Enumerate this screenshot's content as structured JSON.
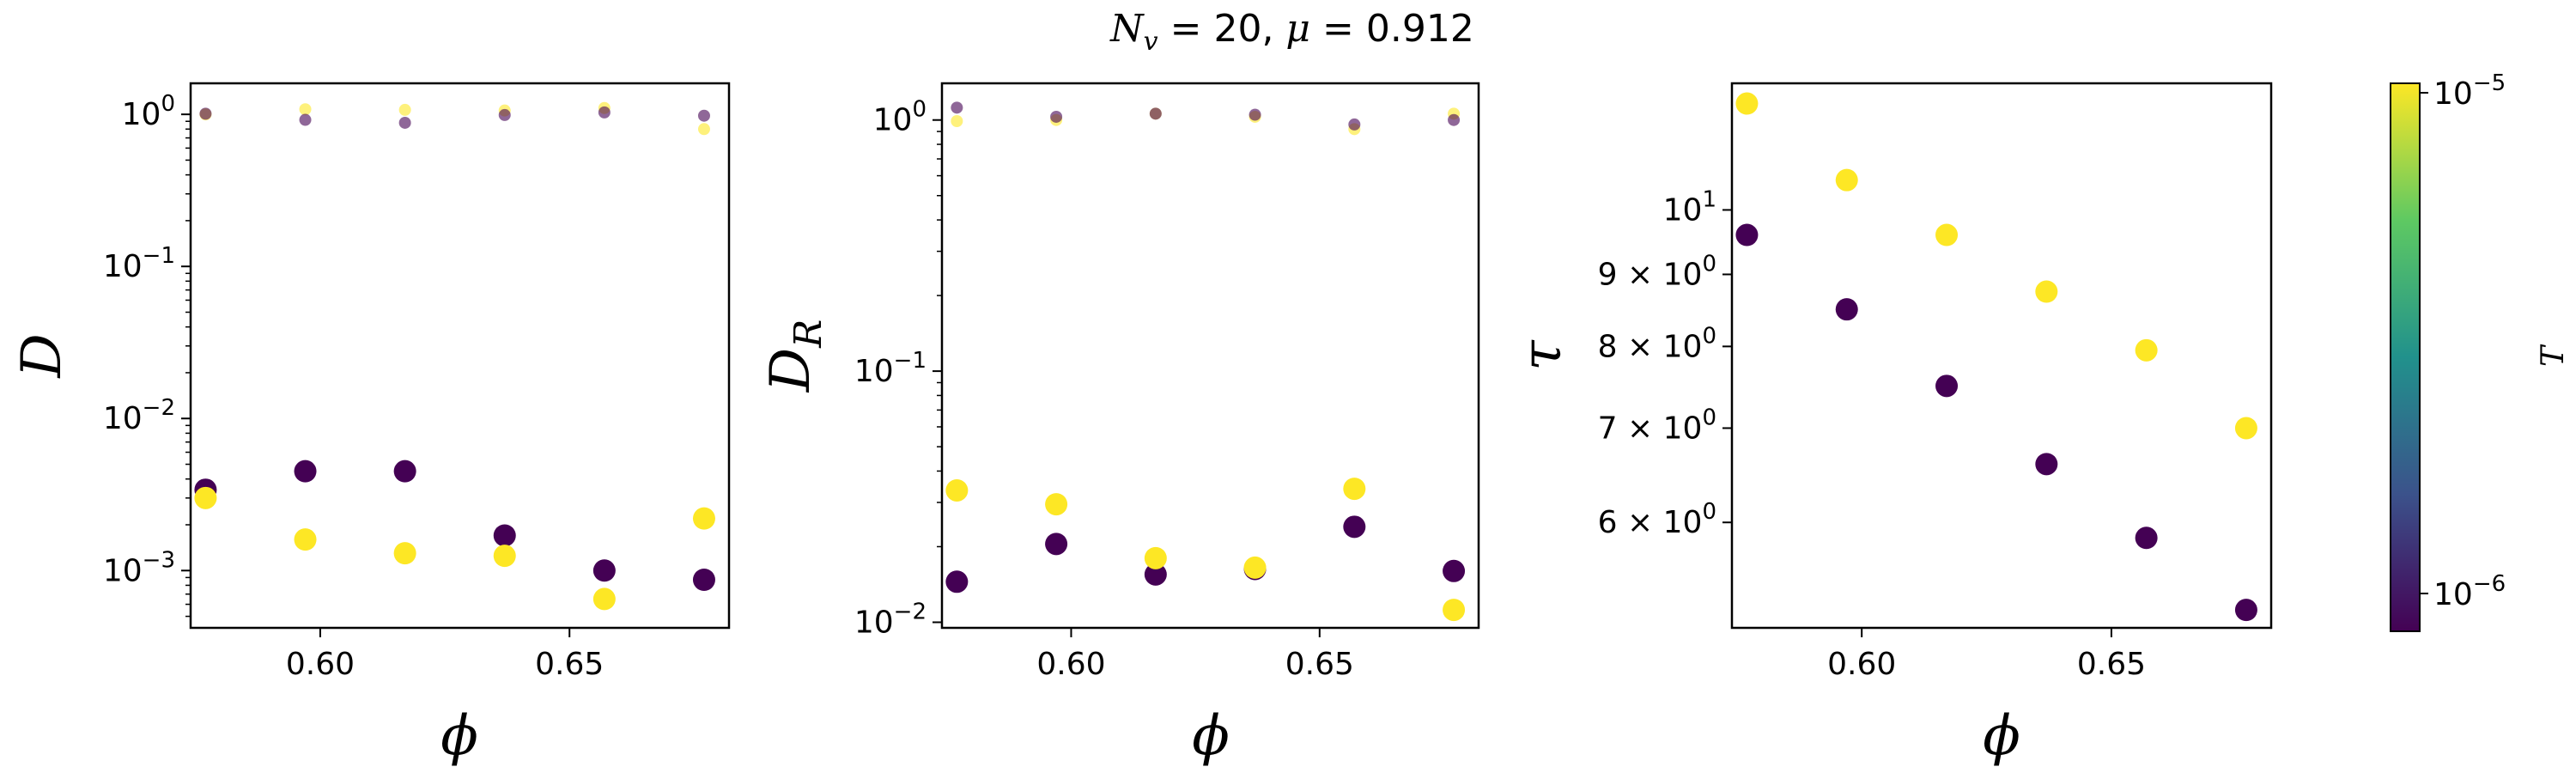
{
  "figure": {
    "title_main": "N",
    "title_sub": "v",
    "title_rest": " = 20, ",
    "title_mu": "μ",
    "title_value": " = 0.912"
  },
  "colorbar": {
    "label": "T",
    "tick_top_base": "10",
    "tick_top_exp": "−5",
    "tick_bottom_base": "10",
    "tick_bottom_exp": "−6",
    "colors": [
      "#440154",
      "#3b528b",
      "#21918c",
      "#5ec962",
      "#fde725"
    ]
  },
  "chart_data": [
    {
      "type": "scatter",
      "xlabel": "ϕ",
      "ylabel": "D",
      "yscale": "log",
      "xlim": [
        0.574,
        0.682
      ],
      "ylim": [
        0.00042,
        1.6
      ],
      "xticks": [
        {
          "value": 0.6,
          "label": "0.60"
        },
        {
          "value": 0.65,
          "label": "0.65"
        }
      ],
      "yticks": [
        {
          "value": 1,
          "base": "10",
          "exp": "0"
        },
        {
          "value": 0.1,
          "base": "10",
          "exp": "−1"
        },
        {
          "value": 0.01,
          "base": "10",
          "exp": "−2"
        },
        {
          "value": 0.001,
          "base": "10",
          "exp": "−3"
        }
      ],
      "series": [
        {
          "color": "#fde725",
          "size": "small",
          "alpha": 0.6,
          "x": [
            0.577,
            0.597,
            0.617,
            0.637,
            0.657,
            0.677
          ],
          "y": [
            1.0,
            1.08,
            1.07,
            1.06,
            1.1,
            0.8
          ]
        },
        {
          "color": "#440154",
          "size": "small",
          "alpha": 0.6,
          "x": [
            0.577,
            0.597,
            0.617,
            0.637,
            0.657,
            0.677
          ],
          "y": [
            1.01,
            0.92,
            0.88,
            0.99,
            1.03,
            0.98
          ]
        },
        {
          "color": "#440154",
          "size": "large",
          "alpha": 1,
          "x": [
            0.577,
            0.597,
            0.617,
            0.637,
            0.657,
            0.677
          ],
          "y": [
            0.0034,
            0.0045,
            0.0045,
            0.0017,
            0.001,
            0.00087
          ]
        },
        {
          "color": "#fde725",
          "size": "large",
          "alpha": 1,
          "x": [
            0.577,
            0.597,
            0.617,
            0.637,
            0.657,
            0.677
          ],
          "y": [
            0.003,
            0.0016,
            0.0013,
            0.00125,
            0.00065,
            0.0022
          ]
        }
      ]
    },
    {
      "type": "scatter",
      "xlabel": "ϕ",
      "ylabel": "D",
      "ylabel_sub": "R",
      "yscale": "log",
      "xlim": [
        0.574,
        0.682
      ],
      "ylim": [
        0.0095,
        1.4
      ],
      "xticks": [
        {
          "value": 0.6,
          "label": "0.60"
        },
        {
          "value": 0.65,
          "label": "0.65"
        }
      ],
      "yticks": [
        {
          "value": 1,
          "base": "10",
          "exp": "0"
        },
        {
          "value": 0.1,
          "base": "10",
          "exp": "−1"
        },
        {
          "value": 0.01,
          "base": "10",
          "exp": "−2"
        }
      ],
      "series": [
        {
          "color": "#fde725",
          "size": "small",
          "alpha": 0.6,
          "x": [
            0.577,
            0.597,
            0.617,
            0.637,
            0.657,
            0.677
          ],
          "y": [
            0.99,
            1.0,
            1.06,
            1.03,
            0.92,
            1.06
          ]
        },
        {
          "color": "#440154",
          "size": "small",
          "alpha": 0.6,
          "x": [
            0.577,
            0.597,
            0.617,
            0.637,
            0.657,
            0.677
          ],
          "y": [
            1.12,
            1.03,
            1.06,
            1.05,
            0.96,
            1.0
          ]
        },
        {
          "color": "#440154",
          "size": "large",
          "alpha": 1,
          "x": [
            0.577,
            0.597,
            0.617,
            0.637,
            0.657,
            0.677
          ],
          "y": [
            0.0145,
            0.0205,
            0.0155,
            0.0163,
            0.024,
            0.016
          ]
        },
        {
          "color": "#fde725",
          "size": "large",
          "alpha": 1,
          "x": [
            0.577,
            0.597,
            0.617,
            0.637,
            0.657,
            0.677
          ],
          "y": [
            0.0335,
            0.0295,
            0.018,
            0.0165,
            0.034,
            0.0112
          ]
        }
      ]
    },
    {
      "type": "scatter",
      "xlabel": "ϕ",
      "ylabel": "τ",
      "yscale": "log",
      "xlim": [
        0.574,
        0.682
      ],
      "ylim": [
        5.05,
        12.3
      ],
      "xticks": [
        {
          "value": 0.6,
          "label": "0.60"
        },
        {
          "value": 0.65,
          "label": "0.65"
        }
      ],
      "yticks": [
        {
          "value": 10,
          "base": "10",
          "exp": "1"
        },
        {
          "value": 9,
          "mantissa": "9",
          "base": "10",
          "exp": "0"
        },
        {
          "value": 8,
          "mantissa": "8",
          "base": "10",
          "exp": "0"
        },
        {
          "value": 7,
          "mantissa": "7",
          "base": "10",
          "exp": "0"
        },
        {
          "value": 6,
          "mantissa": "6",
          "base": "10",
          "exp": "0"
        }
      ],
      "series": [
        {
          "color": "#fde725",
          "size": "large",
          "alpha": 1,
          "x": [
            0.577,
            0.597,
            0.617,
            0.637,
            0.657,
            0.677
          ],
          "y": [
            11.9,
            10.5,
            9.6,
            8.75,
            7.95,
            7.0
          ]
        },
        {
          "color": "#440154",
          "size": "large",
          "alpha": 1,
          "x": [
            0.577,
            0.597,
            0.617,
            0.637,
            0.657,
            0.677
          ],
          "y": [
            9.6,
            8.5,
            7.5,
            6.6,
            5.85,
            5.2
          ]
        }
      ]
    }
  ]
}
